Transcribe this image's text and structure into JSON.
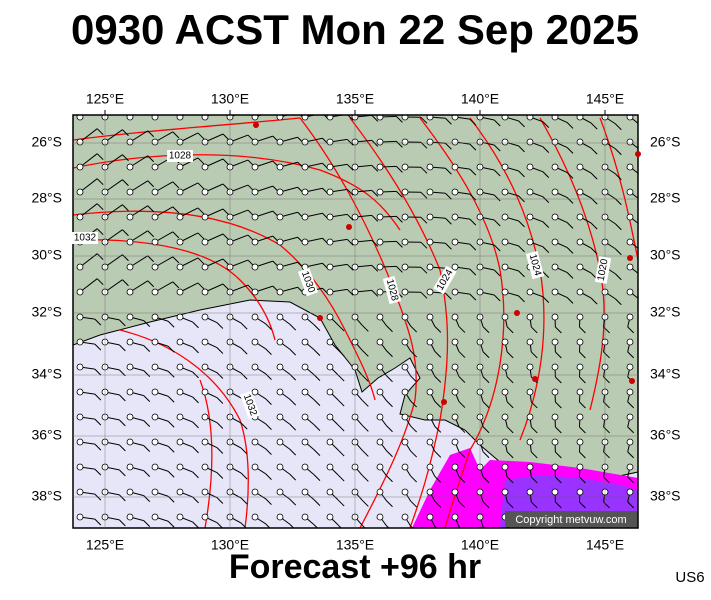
{
  "title": "0930 ACST Mon 22 Sep 2025",
  "lon_labels": [
    "125°E",
    "130°E",
    "135°E",
    "140°E",
    "145°E"
  ],
  "lat_labels": [
    "26°S",
    "28°S",
    "30°S",
    "32°S",
    "34°S",
    "36°S",
    "38°S"
  ],
  "isobar_labels": [
    "1028",
    "1032",
    "1030",
    "1028",
    "1024",
    "1024",
    "1020",
    "1032"
  ],
  "copyright": "Copyright metvuw.com",
  "footer": "Forecast +96 hr",
  "code": "US6"
}
